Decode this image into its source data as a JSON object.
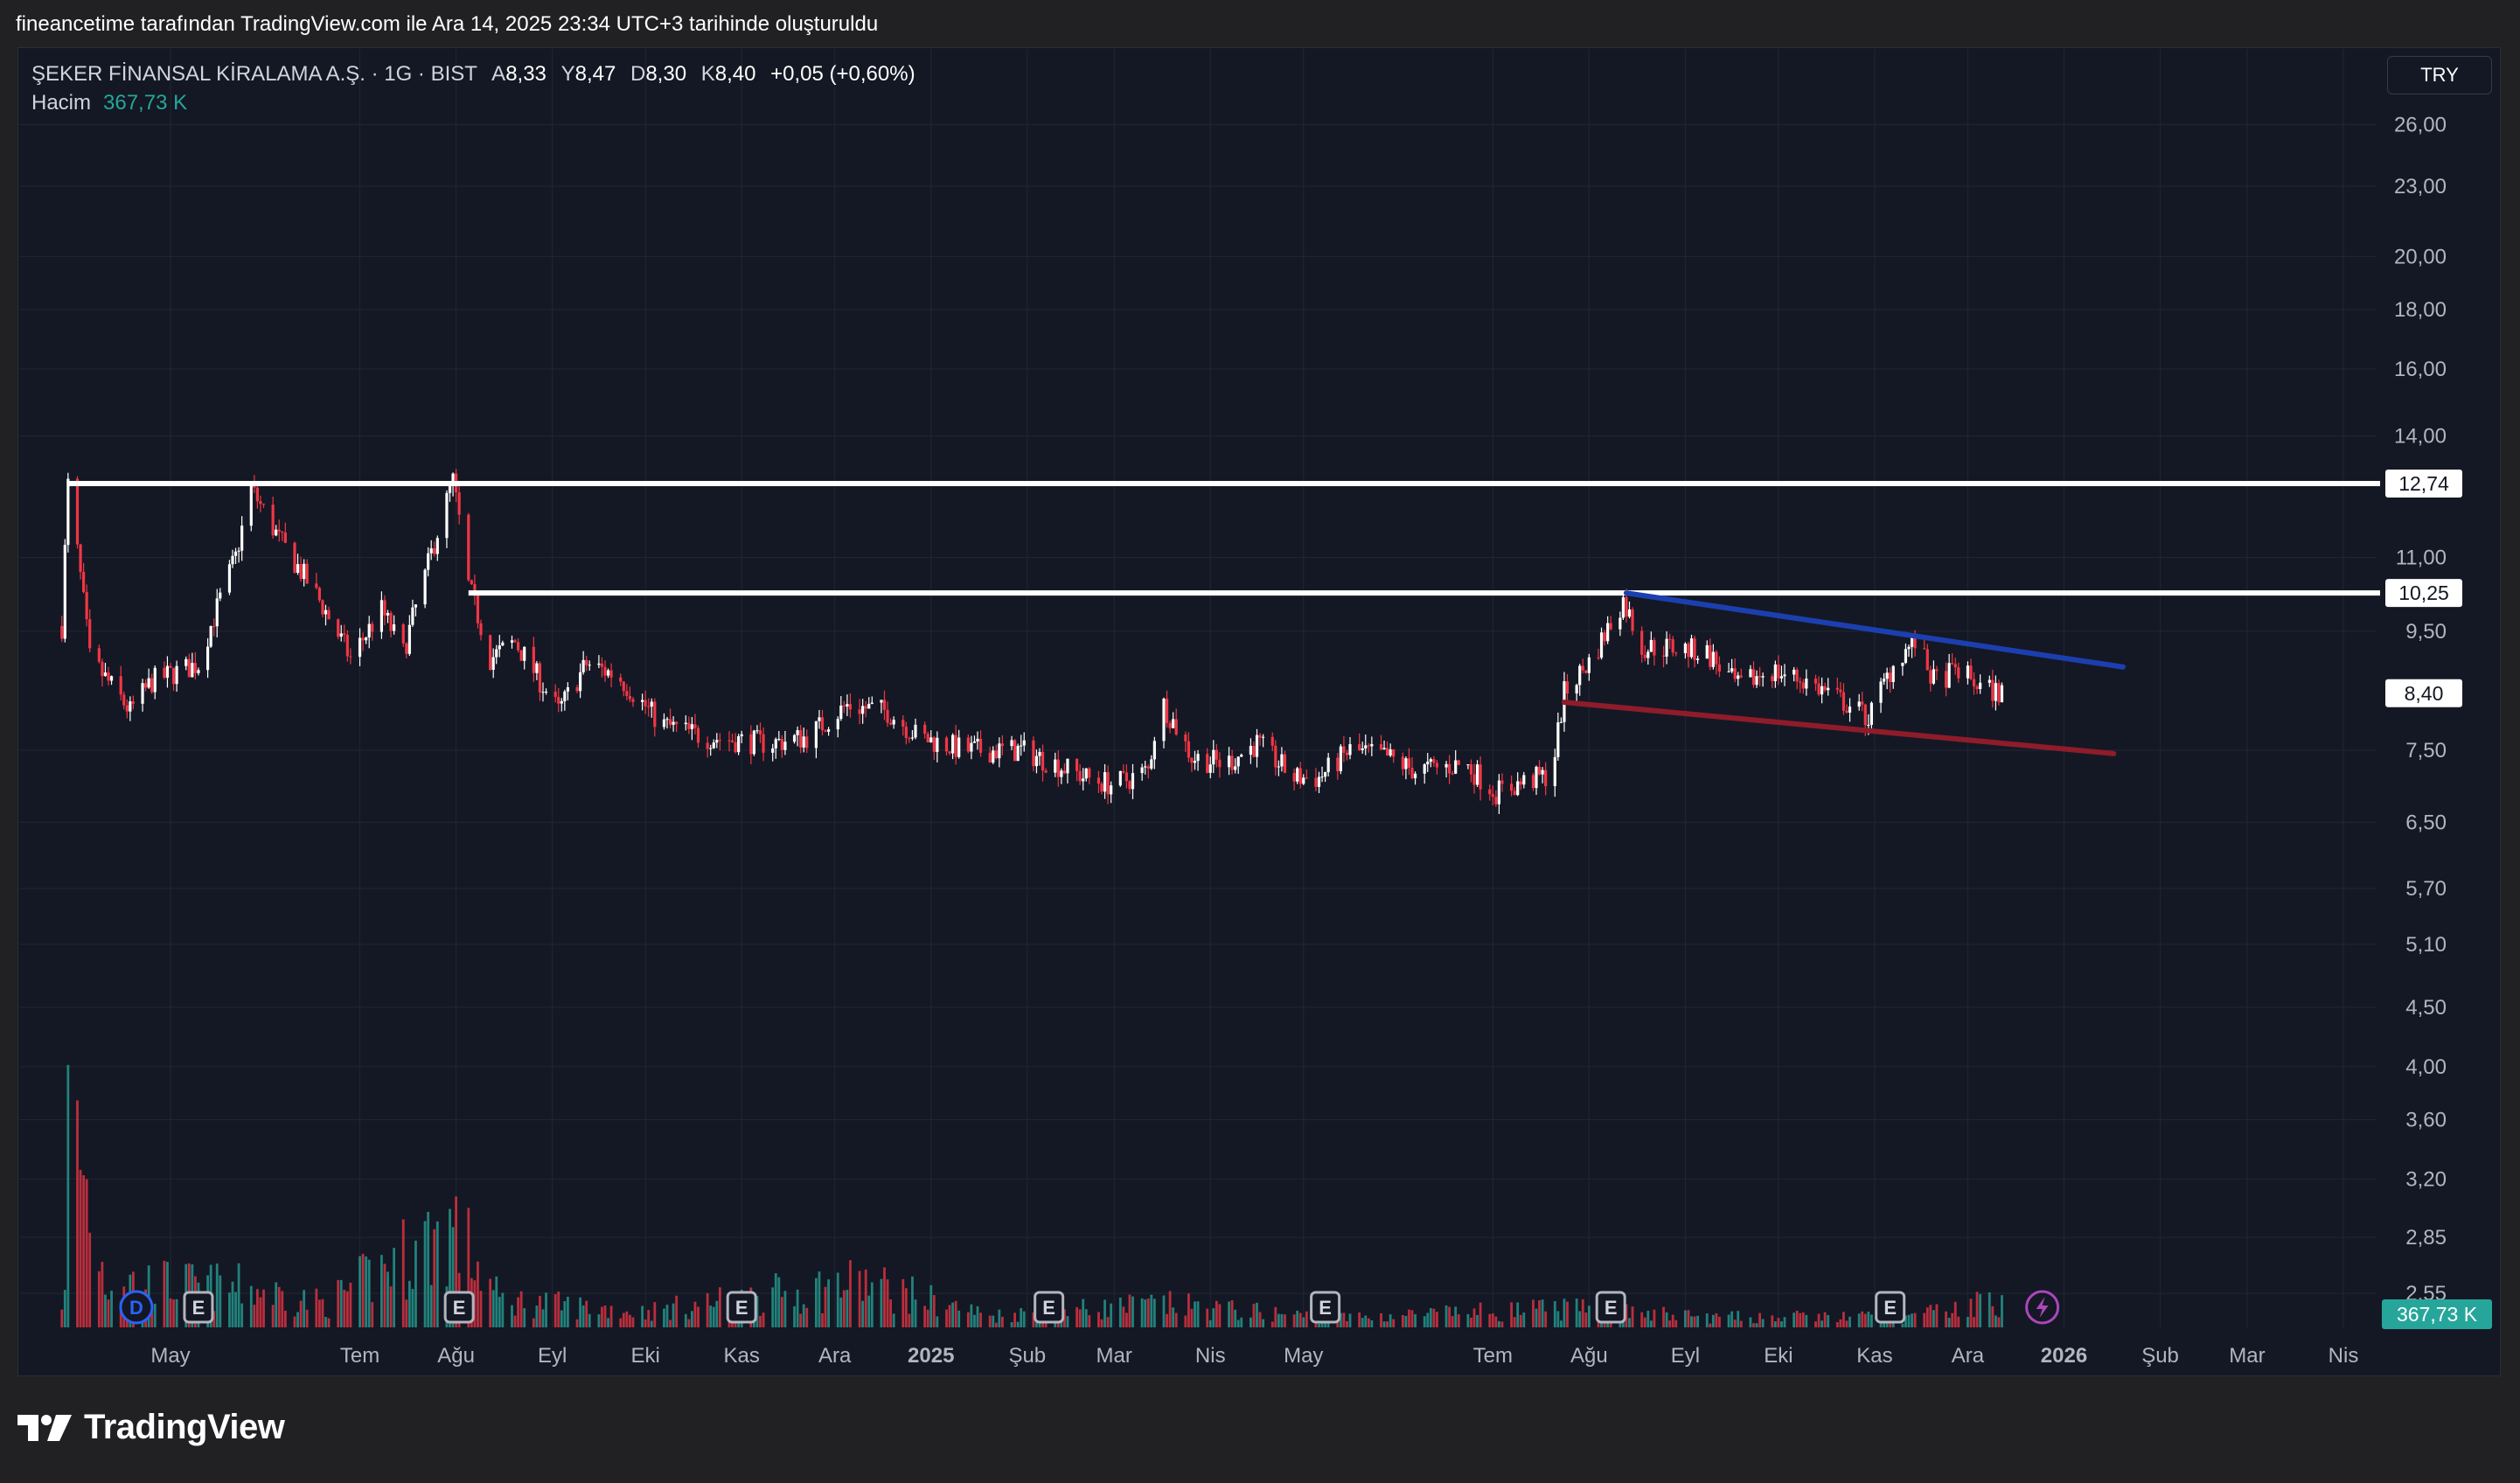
{
  "header": {
    "caption": "fineancetime tarafından TradingView.com ile Ara 14, 2025 23:34 UTC+3 tarihinde oluşturuldu"
  },
  "legend": {
    "symbol": "ŞEKER FİNANSAL KİRALAMA A.Ş. · 1G · BIST",
    "open_label": "A",
    "open": "8,33",
    "high_label": "Y",
    "high": "8,47",
    "low_label": "D",
    "low": "8,30",
    "close_label": "K",
    "close": "8,40",
    "change": "+0,05 (+0,60%)",
    "volume_label": "Hacim",
    "volume_value": "367,73 K"
  },
  "currency": "TRY",
  "brand": {
    "name": "TradingView"
  },
  "colors": {
    "up": "#ffffff",
    "down": "#f23645",
    "volume_up": "#26a69a",
    "volume_down": "#f23645",
    "trend_upper": "#1c3fb0",
    "trend_lower": "#8e1c2a",
    "level": "#ffffff",
    "last_price_badge": "#ffffff",
    "volume_badge": "#26a69a"
  },
  "chart_data": {
    "type": "candlestick",
    "title": "ŞEKER FİNANSAL KİRALAMA A.Ş. · 1G · BIST",
    "y_scale": "log",
    "y_ticks": [
      "26,00",
      "23,00",
      "20,00",
      "18,00",
      "16,00",
      "14,00",
      "11,00",
      "9,50",
      "7,50",
      "6,50",
      "5,70",
      "5,10",
      "4,50",
      "4,00",
      "3,60",
      "3,20",
      "2,85",
      "2,55"
    ],
    "x_ticks": [
      {
        "label": "May",
        "date": "2024-05-01"
      },
      {
        "label": "Tem",
        "date": "2024-07-01"
      },
      {
        "label": "Ağu",
        "date": "2024-08-01"
      },
      {
        "label": "Eyl",
        "date": "2024-09-01"
      },
      {
        "label": "Eki",
        "date": "2024-10-01"
      },
      {
        "label": "Kas",
        "date": "2024-11-01"
      },
      {
        "label": "Ara",
        "date": "2024-12-01"
      },
      {
        "label": "2025",
        "date": "2025-01-01",
        "bold": true
      },
      {
        "label": "Şub",
        "date": "2025-02-01"
      },
      {
        "label": "Mar",
        "date": "2025-03-01"
      },
      {
        "label": "Nis",
        "date": "2025-04-01"
      },
      {
        "label": "May",
        "date": "2025-05-01"
      },
      {
        "label": "Tem",
        "date": "2025-07-01"
      },
      {
        "label": "Ağu",
        "date": "2025-08-01"
      },
      {
        "label": "Eyl",
        "date": "2025-09-01"
      },
      {
        "label": "Eki",
        "date": "2025-10-01"
      },
      {
        "label": "Kas",
        "date": "2025-11-01"
      },
      {
        "label": "Ara",
        "date": "2025-12-01"
      },
      {
        "label": "2026",
        "date": "2026-01-01",
        "bold": true
      },
      {
        "label": "Şub",
        "date": "2026-02-01"
      },
      {
        "label": "Mar",
        "date": "2026-03-01"
      },
      {
        "label": "Nis",
        "date": "2026-04-01"
      }
    ],
    "price_path": [
      [
        "2024-03-27",
        9.6
      ],
      [
        "2024-03-29",
        12.7
      ],
      [
        "2024-04-05",
        9.0
      ],
      [
        "2024-04-18",
        8.1
      ],
      [
        "2024-04-25",
        8.6
      ],
      [
        "2024-05-10",
        8.9
      ],
      [
        "2024-05-22",
        11.0
      ],
      [
        "2024-05-27",
        12.6
      ],
      [
        "2024-06-05",
        11.4
      ],
      [
        "2024-06-18",
        10.1
      ],
      [
        "2024-06-28",
        9.0
      ],
      [
        "2024-07-08",
        9.9
      ],
      [
        "2024-07-15",
        9.1
      ],
      [
        "2024-07-22",
        10.6
      ],
      [
        "2024-07-31",
        12.8
      ],
      [
        "2024-08-05",
        10.4
      ],
      [
        "2024-08-12",
        9.0
      ],
      [
        "2024-08-20",
        9.3
      ],
      [
        "2024-09-03",
        8.1
      ],
      [
        "2024-09-12",
        8.9
      ],
      [
        "2024-09-22",
        8.7
      ],
      [
        "2024-10-06",
        7.9
      ],
      [
        "2024-10-20",
        7.7
      ],
      [
        "2024-11-10",
        7.6
      ],
      [
        "2024-11-22",
        7.7
      ],
      [
        "2024-12-05",
        8.2
      ],
      [
        "2024-12-18",
        8.1
      ],
      [
        "2024-12-28",
        7.7
      ],
      [
        "2025-01-12",
        7.5
      ],
      [
        "2025-01-30",
        7.5
      ],
      [
        "2025-02-10",
        7.3
      ],
      [
        "2025-02-20",
        7.1
      ],
      [
        "2025-03-01",
        7.0
      ],
      [
        "2025-03-12",
        7.2
      ],
      [
        "2025-03-16",
        8.3
      ],
      [
        "2025-03-26",
        7.4
      ],
      [
        "2025-04-06",
        7.3
      ],
      [
        "2025-04-16",
        7.6
      ],
      [
        "2025-04-28",
        7.1
      ],
      [
        "2025-05-06",
        7.1
      ],
      [
        "2025-05-16",
        7.5
      ],
      [
        "2025-05-28",
        7.4
      ],
      [
        "2025-06-06",
        7.2
      ],
      [
        "2025-06-22",
        7.3
      ],
      [
        "2025-07-02",
        6.9
      ],
      [
        "2025-07-12",
        7.05
      ],
      [
        "2025-07-20",
        7.15
      ],
      [
        "2025-07-24",
        8.4
      ],
      [
        "2025-08-02",
        9.0
      ],
      [
        "2025-08-12",
        10.1
      ],
      [
        "2025-08-18",
        9.2
      ],
      [
        "2025-08-28",
        9.2
      ],
      [
        "2025-09-08",
        9.1
      ],
      [
        "2025-09-18",
        8.5
      ],
      [
        "2025-09-28",
        8.8
      ],
      [
        "2025-10-10",
        8.6
      ],
      [
        "2025-10-24",
        8.2
      ],
      [
        "2025-10-30",
        8.0
      ],
      [
        "2025-11-08",
        9.0
      ],
      [
        "2025-11-14",
        9.3
      ],
      [
        "2025-11-20",
        8.6
      ],
      [
        "2025-11-28",
        8.8
      ],
      [
        "2025-12-05",
        8.5
      ],
      [
        "2025-12-12",
        8.4
      ]
    ],
    "volume_path": [
      [
        "2024-03-29",
        2900000
      ],
      [
        "2024-04-10",
        600000
      ],
      [
        "2024-05-27",
        500000
      ],
      [
        "2024-06-20",
        300000
      ],
      [
        "2024-07-31",
        1300000
      ],
      [
        "2024-08-15",
        350000
      ],
      [
        "2024-10-01",
        200000
      ],
      [
        "2024-12-10",
        580000
      ],
      [
        "2025-01-20",
        150000
      ],
      [
        "2025-03-16",
        300000
      ],
      [
        "2025-05-10",
        120000
      ],
      [
        "2025-07-24",
        240000
      ],
      [
        "2025-09-10",
        130000
      ],
      [
        "2025-11-14",
        140000
      ],
      [
        "2025-12-12",
        367730
      ]
    ],
    "horizontal_levels": [
      {
        "value": 12.74,
        "label": "12,74",
        "from": "2024-03-29"
      },
      {
        "value": 10.25,
        "label": "10,25",
        "from": "2024-08-05"
      }
    ],
    "trend_lines": [
      {
        "name": "upper",
        "from": [
          "2025-08-13",
          10.25
        ],
        "to": [
          "2026-01-20",
          8.85
        ]
      },
      {
        "name": "lower",
        "from": [
          "2025-07-24",
          8.25
        ],
        "to": [
          "2026-01-17",
          7.45
        ]
      }
    ],
    "last_price": {
      "value": 8.4,
      "label": "8,40"
    },
    "last_volume": {
      "value": 367730,
      "label": "367,73 K"
    },
    "events": [
      {
        "type": "D",
        "date": "2024-04-20"
      },
      {
        "type": "E",
        "date": "2024-05-10"
      },
      {
        "type": "E",
        "date": "2024-08-02"
      },
      {
        "type": "E",
        "date": "2024-11-01"
      },
      {
        "type": "E",
        "date": "2025-02-08"
      },
      {
        "type": "E",
        "date": "2025-05-08"
      },
      {
        "type": "E",
        "date": "2025-08-08"
      },
      {
        "type": "E",
        "date": "2025-11-06"
      },
      {
        "type": "flash",
        "date": "2025-12-25"
      }
    ]
  }
}
